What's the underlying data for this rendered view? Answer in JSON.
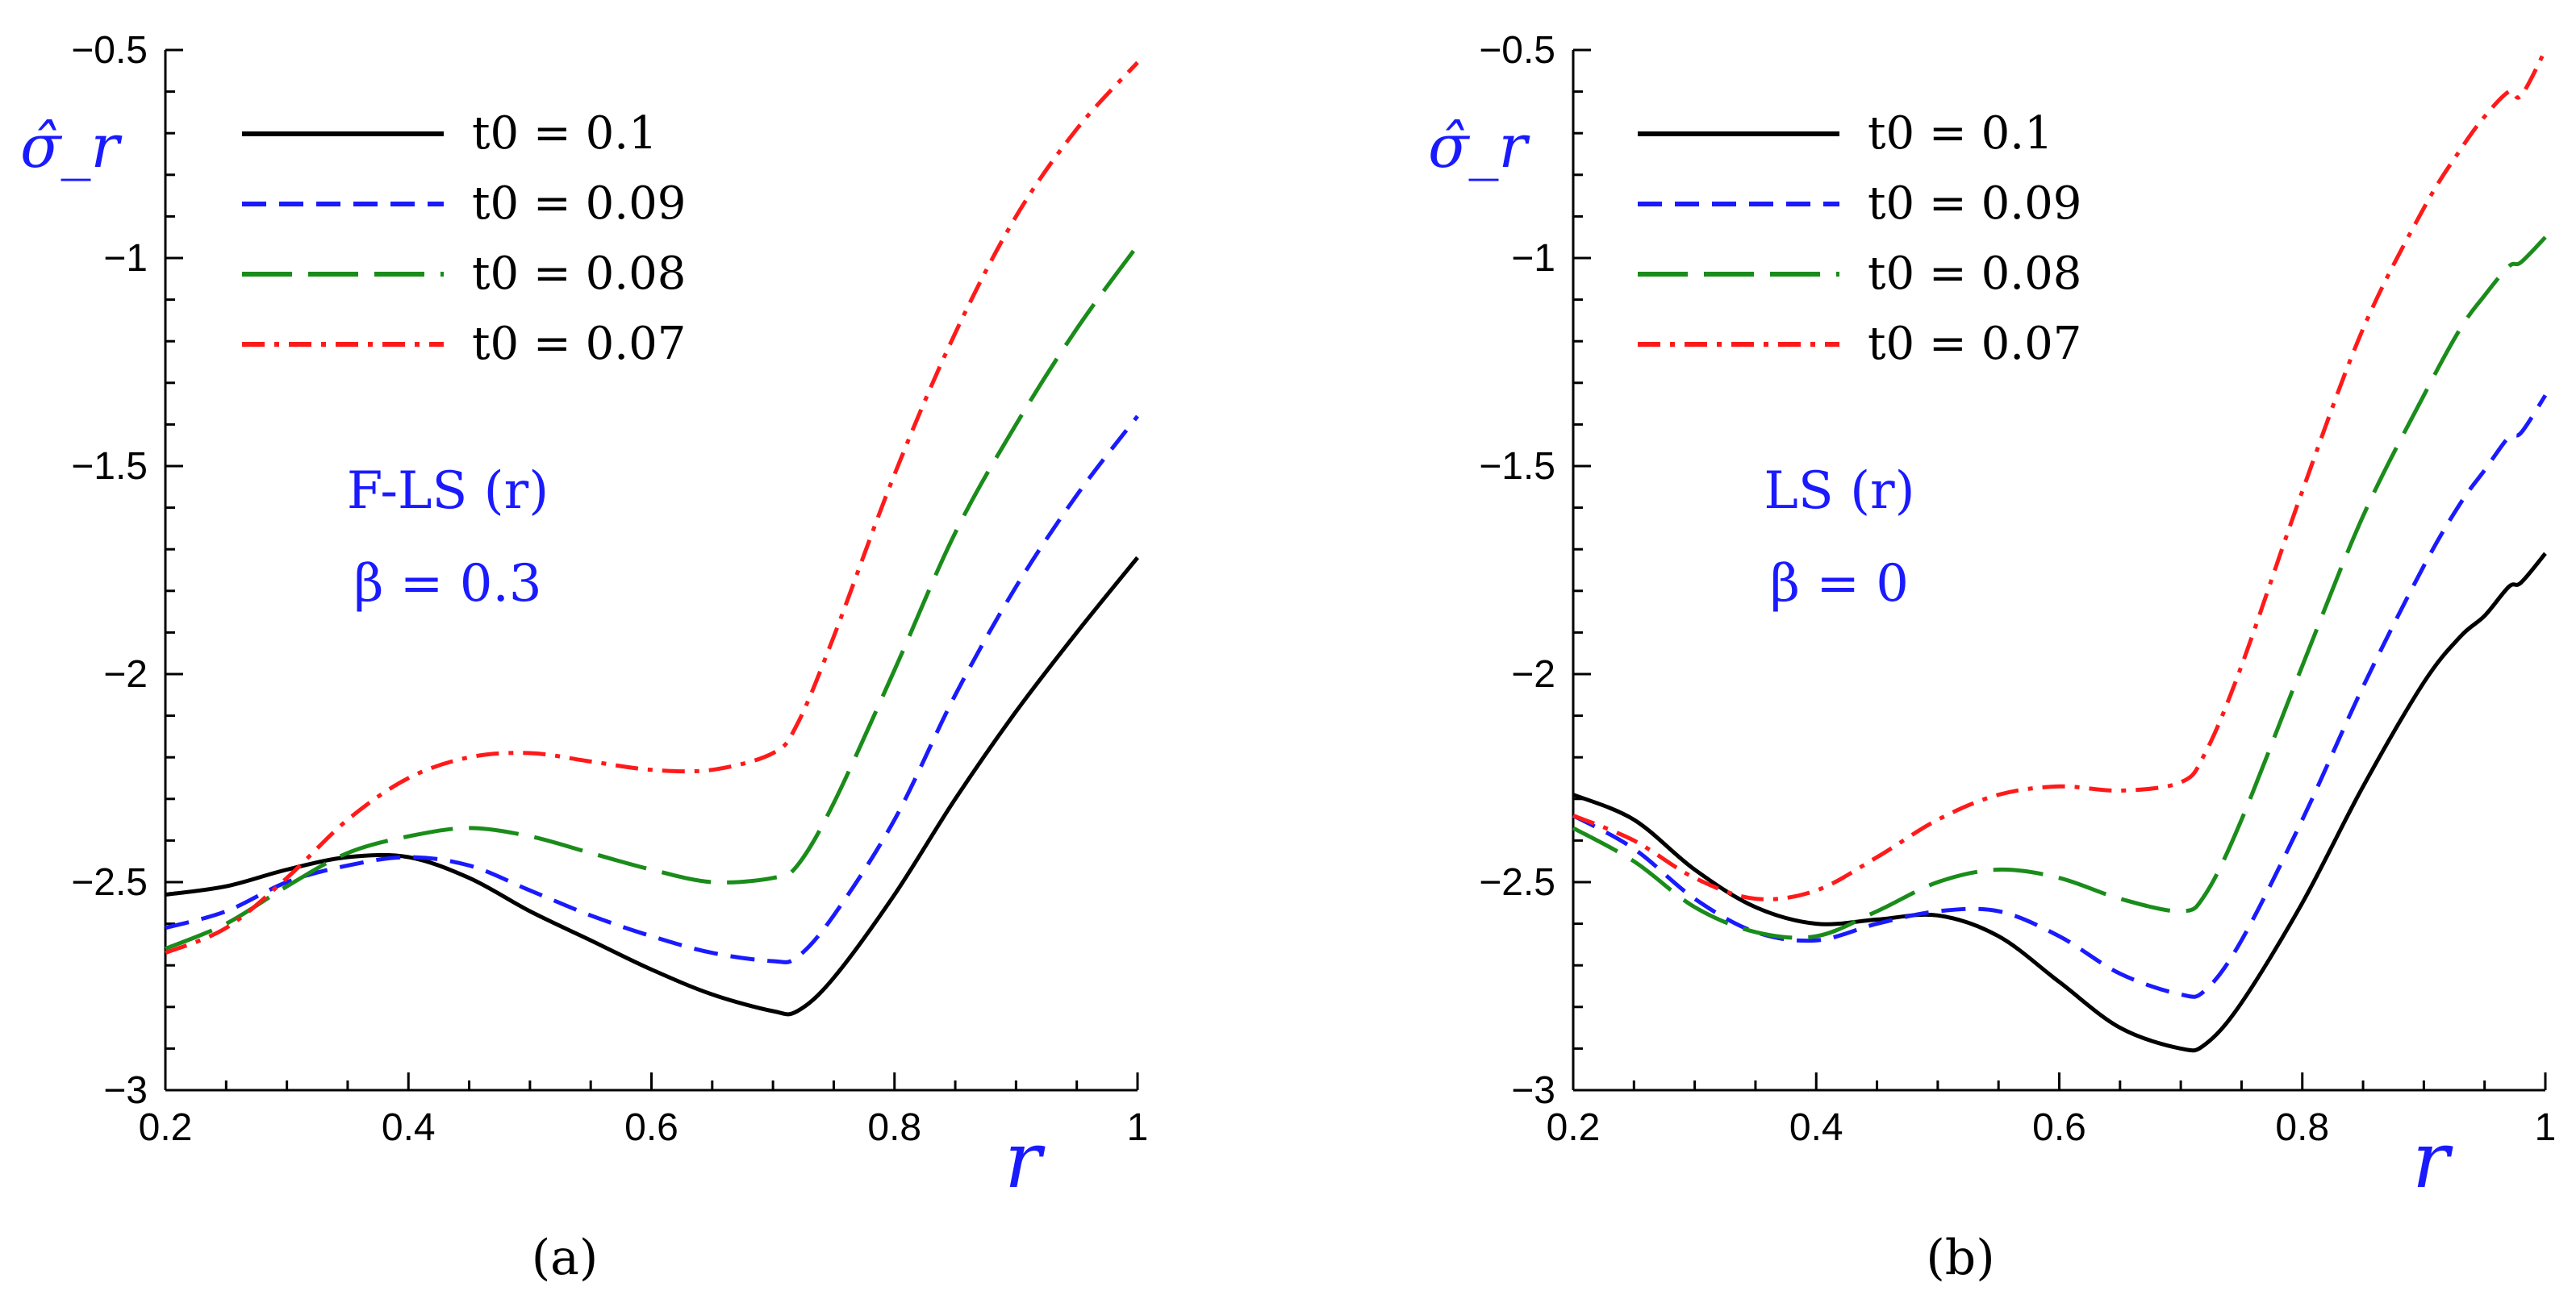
{
  "chart_data": [
    {
      "panel_label": "(a)",
      "type": "line",
      "xlabel": "r",
      "ylabel": "σ̂_r",
      "xlim": [
        0.2,
        1.0
      ],
      "ylim": [
        -3.0,
        -0.5
      ],
      "xticks": [
        "0.2",
        "0.4",
        "0.6",
        "0.8",
        "1"
      ],
      "yticks": [
        "−0.5",
        "−1",
        "−1.5",
        "−2",
        "−2.5",
        "−3"
      ],
      "annotations": [
        "F-LS (r)",
        "β = 0.3"
      ],
      "legend_position": "top-left",
      "series": [
        {
          "name": "t0 = 0.1",
          "color": "#000000",
          "dash": "solid",
          "x": [
            0.2,
            0.25,
            0.3,
            0.35,
            0.4,
            0.45,
            0.5,
            0.55,
            0.6,
            0.65,
            0.7,
            0.72,
            0.75,
            0.8,
            0.85,
            0.9,
            0.95,
            1.0
          ],
          "y": [
            -2.53,
            -2.51,
            -2.47,
            -2.44,
            -2.44,
            -2.49,
            -2.57,
            -2.64,
            -2.71,
            -2.77,
            -2.81,
            -2.81,
            -2.73,
            -2.53,
            -2.3,
            -2.09,
            -1.9,
            -1.72
          ]
        },
        {
          "name": "t0 = 0.09",
          "color": "#1a1aff",
          "dash": "dash-short",
          "x": [
            0.2,
            0.25,
            0.3,
            0.35,
            0.4,
            0.45,
            0.5,
            0.55,
            0.6,
            0.65,
            0.7,
            0.72,
            0.75,
            0.8,
            0.85,
            0.9,
            0.95,
            1.0
          ],
          "y": [
            -2.61,
            -2.57,
            -2.5,
            -2.46,
            -2.44,
            -2.46,
            -2.52,
            -2.58,
            -2.63,
            -2.67,
            -2.69,
            -2.68,
            -2.58,
            -2.35,
            -2.05,
            -1.79,
            -1.57,
            -1.38
          ]
        },
        {
          "name": "t0 = 0.08",
          "color": "#1a8c1a",
          "dash": "dash-long",
          "x": [
            0.2,
            0.25,
            0.3,
            0.35,
            0.4,
            0.45,
            0.5,
            0.55,
            0.6,
            0.65,
            0.7,
            0.72,
            0.75,
            0.8,
            0.85,
            0.9,
            0.95,
            1.0
          ],
          "y": [
            -2.66,
            -2.6,
            -2.51,
            -2.43,
            -2.39,
            -2.37,
            -2.39,
            -2.43,
            -2.47,
            -2.5,
            -2.49,
            -2.46,
            -2.31,
            -1.99,
            -1.66,
            -1.4,
            -1.17,
            -0.97
          ]
        },
        {
          "name": "t0 = 0.07",
          "color": "#ff1a1a",
          "dash": "dash-dot",
          "x": [
            0.2,
            0.25,
            0.3,
            0.35,
            0.4,
            0.45,
            0.5,
            0.55,
            0.6,
            0.65,
            0.7,
            0.72,
            0.75,
            0.8,
            0.85,
            0.9,
            0.95,
            1.0
          ],
          "y": [
            -2.67,
            -2.61,
            -2.49,
            -2.35,
            -2.25,
            -2.2,
            -2.19,
            -2.21,
            -2.23,
            -2.23,
            -2.19,
            -2.12,
            -1.91,
            -1.52,
            -1.18,
            -0.9,
            -0.69,
            -0.53
          ]
        }
      ]
    },
    {
      "panel_label": "(b)",
      "type": "line",
      "xlabel": "r",
      "ylabel": "σ̂_r",
      "xlim": [
        0.2,
        1.0
      ],
      "ylim": [
        -3.0,
        -0.5
      ],
      "xticks": [
        "0.2",
        "0.4",
        "0.6",
        "0.8",
        "1"
      ],
      "yticks": [
        "−0.5",
        "−1",
        "−1.5",
        "−2",
        "−2.5",
        "−3"
      ],
      "annotations": [
        "LS (r)",
        "β = 0"
      ],
      "legend_position": "top-left",
      "series": [
        {
          "name": "t0 = 0.1",
          "color": "#000000",
          "dash": "solid",
          "x": [
            0.2,
            0.25,
            0.3,
            0.35,
            0.4,
            0.45,
            0.5,
            0.55,
            0.6,
            0.65,
            0.7,
            0.72,
            0.75,
            0.8,
            0.85,
            0.9,
            0.93,
            0.95,
            0.97,
            0.98,
            1.0
          ],
          "y": [
            -2.29,
            -2.35,
            -2.47,
            -2.56,
            -2.6,
            -2.59,
            -2.58,
            -2.63,
            -2.74,
            -2.85,
            -2.9,
            -2.89,
            -2.79,
            -2.55,
            -2.27,
            -2.02,
            -1.91,
            -1.86,
            -1.79,
            -1.78,
            -1.71
          ]
        },
        {
          "name": "t0 = 0.09",
          "color": "#1a1aff",
          "dash": "dash-short",
          "x": [
            0.2,
            0.25,
            0.3,
            0.35,
            0.4,
            0.45,
            0.5,
            0.55,
            0.6,
            0.65,
            0.7,
            0.72,
            0.75,
            0.8,
            0.85,
            0.9,
            0.93,
            0.95,
            0.97,
            0.98,
            1.0
          ],
          "y": [
            -2.34,
            -2.42,
            -2.54,
            -2.62,
            -2.64,
            -2.6,
            -2.57,
            -2.57,
            -2.63,
            -2.72,
            -2.77,
            -2.76,
            -2.64,
            -2.35,
            -2.03,
            -1.74,
            -1.59,
            -1.51,
            -1.43,
            -1.42,
            -1.33
          ]
        },
        {
          "name": "t0 = 0.08",
          "color": "#1a8c1a",
          "dash": "dash-long",
          "x": [
            0.2,
            0.25,
            0.3,
            0.35,
            0.4,
            0.45,
            0.5,
            0.55,
            0.6,
            0.65,
            0.7,
            0.72,
            0.75,
            0.8,
            0.85,
            0.9,
            0.93,
            0.95,
            0.97,
            0.98,
            1.0
          ],
          "y": [
            -2.37,
            -2.45,
            -2.56,
            -2.62,
            -2.63,
            -2.57,
            -2.5,
            -2.47,
            -2.49,
            -2.54,
            -2.57,
            -2.53,
            -2.35,
            -1.98,
            -1.62,
            -1.33,
            -1.17,
            -1.09,
            -1.02,
            -1.01,
            -0.95
          ]
        },
        {
          "name": "t0 = 0.07",
          "color": "#ff1a1a",
          "dash": "dash-dot",
          "x": [
            0.2,
            0.25,
            0.3,
            0.35,
            0.4,
            0.45,
            0.5,
            0.55,
            0.6,
            0.65,
            0.7,
            0.72,
            0.75,
            0.8,
            0.85,
            0.9,
            0.93,
            0.95,
            0.97,
            0.98,
            1.0
          ],
          "y": [
            -2.34,
            -2.4,
            -2.49,
            -2.54,
            -2.52,
            -2.44,
            -2.35,
            -2.29,
            -2.27,
            -2.28,
            -2.26,
            -2.19,
            -1.98,
            -1.56,
            -1.17,
            -0.88,
            -0.74,
            -0.66,
            -0.6,
            -0.61,
            -0.5
          ]
        }
      ]
    }
  ]
}
